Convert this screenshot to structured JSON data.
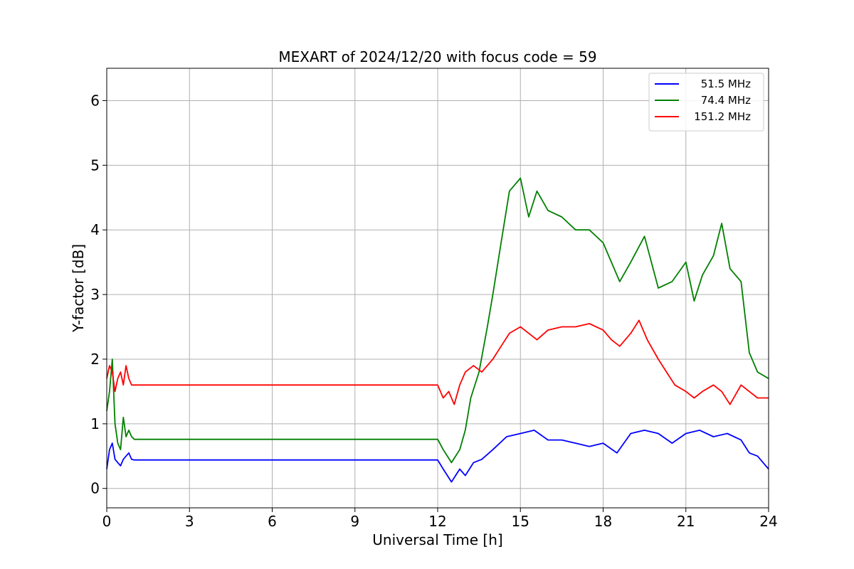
{
  "chart_data": {
    "type": "line",
    "title": "MEXART of 2024/12/20 with focus code = 59",
    "xlabel": "Universal Time [h]",
    "ylabel": "Y-factor [dB]",
    "xlim": [
      0,
      24
    ],
    "ylim": [
      -0.3,
      6.5
    ],
    "xticks": [
      0,
      3,
      6,
      9,
      12,
      15,
      18,
      21,
      24
    ],
    "yticks": [
      0,
      1,
      2,
      3,
      4,
      5,
      6
    ],
    "grid": true,
    "legend_position": "top-right",
    "series": [
      {
        "name": "51.5 MHz",
        "color": "#0000ff",
        "x": [
          0,
          0.1,
          0.2,
          0.3,
          0.4,
          0.5,
          0.6,
          0.7,
          0.8,
          0.9,
          1.0,
          12.0,
          12.2,
          12.5,
          12.8,
          13.0,
          13.3,
          13.6,
          14.0,
          14.5,
          15.0,
          15.5,
          16.0,
          16.5,
          17.0,
          17.5,
          18.0,
          18.5,
          19.0,
          19.5,
          20.0,
          20.5,
          21.0,
          21.5,
          22.0,
          22.5,
          23.0,
          23.3,
          23.6,
          24.0
        ],
        "y": [
          0.3,
          0.6,
          0.7,
          0.45,
          0.4,
          0.35,
          0.45,
          0.5,
          0.55,
          0.45,
          0.44,
          0.44,
          0.3,
          0.1,
          0.3,
          0.2,
          0.4,
          0.45,
          0.6,
          0.8,
          0.85,
          0.9,
          0.75,
          0.75,
          0.7,
          0.65,
          0.7,
          0.55,
          0.85,
          0.9,
          0.85,
          0.7,
          0.85,
          0.9,
          0.8,
          0.85,
          0.75,
          0.55,
          0.5,
          0.3
        ]
      },
      {
        "name": "74.4 MHz",
        "color": "#008000",
        "x": [
          0,
          0.1,
          0.2,
          0.3,
          0.4,
          0.5,
          0.6,
          0.7,
          0.8,
          0.9,
          1.0,
          12.0,
          12.2,
          12.5,
          12.8,
          13.0,
          13.2,
          13.5,
          13.8,
          14.0,
          14.3,
          14.6,
          15.0,
          15.3,
          15.6,
          16.0,
          16.5,
          17.0,
          17.5,
          18.0,
          18.3,
          18.6,
          19.0,
          19.5,
          20.0,
          20.5,
          21.0,
          21.3,
          21.6,
          22.0,
          22.3,
          22.6,
          23.0,
          23.3,
          23.6,
          24.0
        ],
        "y": [
          1.2,
          1.5,
          2.0,
          1.0,
          0.7,
          0.6,
          1.1,
          0.8,
          0.9,
          0.8,
          0.76,
          0.76,
          0.6,
          0.4,
          0.6,
          0.9,
          1.4,
          1.8,
          2.5,
          3.0,
          3.8,
          4.6,
          4.8,
          4.2,
          4.6,
          4.3,
          4.2,
          4.0,
          4.0,
          3.8,
          3.5,
          3.2,
          3.5,
          3.9,
          3.1,
          3.2,
          3.5,
          2.9,
          3.3,
          3.6,
          4.1,
          3.4,
          3.2,
          2.1,
          1.8,
          1.7
        ]
      },
      {
        "name": "151.2 MHz",
        "color": "#ff0000",
        "x": [
          0,
          0.1,
          0.2,
          0.3,
          0.4,
          0.5,
          0.6,
          0.7,
          0.8,
          0.9,
          1.0,
          12.0,
          12.2,
          12.4,
          12.6,
          12.8,
          13.0,
          13.3,
          13.6,
          14.0,
          14.3,
          14.6,
          15.0,
          15.3,
          15.6,
          16.0,
          16.5,
          17.0,
          17.5,
          18.0,
          18.3,
          18.6,
          19.0,
          19.3,
          19.6,
          20.0,
          20.3,
          20.6,
          21.0,
          21.3,
          21.6,
          22.0,
          22.3,
          22.6,
          23.0,
          23.3,
          23.6,
          24.0
        ],
        "y": [
          1.7,
          1.9,
          1.8,
          1.5,
          1.7,
          1.8,
          1.6,
          1.9,
          1.7,
          1.6,
          1.6,
          1.6,
          1.4,
          1.5,
          1.3,
          1.6,
          1.8,
          1.9,
          1.8,
          2.0,
          2.2,
          2.4,
          2.5,
          2.4,
          2.3,
          2.45,
          2.5,
          2.5,
          2.55,
          2.45,
          2.3,
          2.2,
          2.4,
          2.6,
          2.3,
          2.0,
          1.8,
          1.6,
          1.5,
          1.4,
          1.5,
          1.6,
          1.5,
          1.3,
          1.6,
          1.5,
          1.4,
          1.4
        ]
      }
    ]
  }
}
